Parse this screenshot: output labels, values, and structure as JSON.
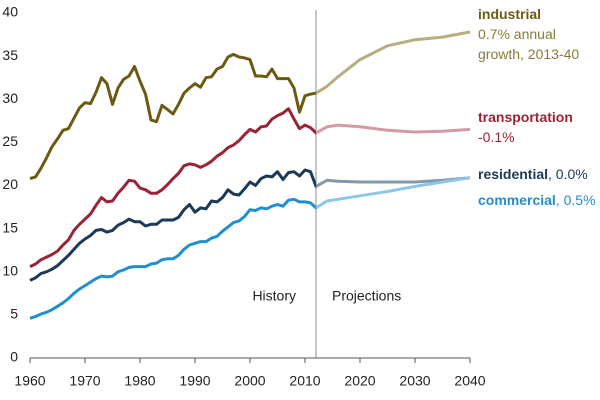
{
  "chart_data": {
    "type": "line",
    "x": [
      1960,
      1961,
      1962,
      1963,
      1964,
      1965,
      1966,
      1967,
      1968,
      1969,
      1970,
      1971,
      1972,
      1973,
      1974,
      1975,
      1976,
      1977,
      1978,
      1979,
      1980,
      1981,
      1982,
      1983,
      1984,
      1985,
      1986,
      1987,
      1988,
      1989,
      1990,
      1991,
      1992,
      1993,
      1994,
      1995,
      1996,
      1997,
      1998,
      1999,
      2000,
      2001,
      2002,
      2003,
      2004,
      2005,
      2006,
      2007,
      2008,
      2009,
      2010,
      2011,
      2012,
      2014,
      2016,
      2020,
      2025,
      2030,
      2035,
      2040
    ],
    "series": [
      {
        "name": "industrial",
        "annotation": "0.7% annual growth, 2013-40",
        "color": "#6b5a12",
        "projection_color": "#b8ad80",
        "values": [
          20.8,
          21.0,
          22.0,
          23.2,
          24.5,
          25.4,
          26.4,
          26.6,
          27.8,
          29.0,
          29.6,
          29.5,
          30.8,
          32.5,
          31.8,
          29.4,
          31.3,
          32.3,
          32.7,
          33.8,
          32.1,
          30.6,
          27.6,
          27.4,
          29.3,
          28.8,
          28.3,
          29.4,
          30.7,
          31.3,
          31.8,
          31.4,
          32.5,
          32.6,
          33.5,
          33.8,
          34.9,
          35.2,
          34.9,
          34.8,
          34.6,
          32.7,
          32.7,
          32.6,
          33.5,
          32.4,
          32.4,
          32.4,
          31.3,
          28.5,
          30.4,
          30.6,
          30.7,
          31.5,
          32.6,
          34.6,
          36.2,
          36.9,
          37.2,
          37.8
        ]
      },
      {
        "name": "transportation",
        "annotation": "-0.1%",
        "color": "#9b2335",
        "projection_color": "#d49aa5",
        "values": [
          10.6,
          10.9,
          11.4,
          11.7,
          12.0,
          12.4,
          13.1,
          13.7,
          14.8,
          15.5,
          16.1,
          16.7,
          17.7,
          18.6,
          18.1,
          18.2,
          19.1,
          19.8,
          20.6,
          20.5,
          19.7,
          19.5,
          19.1,
          19.1,
          19.5,
          20.1,
          20.8,
          21.4,
          22.3,
          22.5,
          22.4,
          22.1,
          22.4,
          22.8,
          23.4,
          23.8,
          24.4,
          24.7,
          25.2,
          25.9,
          26.5,
          26.2,
          26.8,
          26.9,
          27.7,
          28.1,
          28.4,
          28.9,
          27.7,
          26.6,
          27.0,
          26.7,
          26.1,
          26.8,
          27.0,
          26.8,
          26.4,
          26.2,
          26.3,
          26.5
        ]
      },
      {
        "name": "residential",
        "annotation": ", 0.0%",
        "color": "#1a3a57",
        "projection_color": "#8299ab",
        "values": [
          9.0,
          9.3,
          9.8,
          10.0,
          10.3,
          10.7,
          11.3,
          11.9,
          12.6,
          13.3,
          13.8,
          14.2,
          14.8,
          14.9,
          14.6,
          14.8,
          15.4,
          15.7,
          16.1,
          15.8,
          15.8,
          15.3,
          15.5,
          15.5,
          16.0,
          16.0,
          16.0,
          16.3,
          17.2,
          17.8,
          16.9,
          17.4,
          17.3,
          18.2,
          18.1,
          18.6,
          19.5,
          19.0,
          18.9,
          19.6,
          20.4,
          20.0,
          20.8,
          21.1,
          21.0,
          21.6,
          20.7,
          21.5,
          21.6,
          21.1,
          21.8,
          21.6,
          19.9,
          20.6,
          20.5,
          20.4,
          20.4,
          20.4,
          20.6,
          20.9
        ]
      },
      {
        "name": "commercial",
        "annotation": ", 0.5%",
        "color": "#1f8fcf",
        "projection_color": "#8cc6e8",
        "values": [
          4.6,
          4.8,
          5.1,
          5.3,
          5.6,
          6.0,
          6.4,
          6.9,
          7.5,
          8.0,
          8.4,
          8.8,
          9.2,
          9.5,
          9.4,
          9.5,
          10.0,
          10.2,
          10.5,
          10.6,
          10.6,
          10.6,
          10.9,
          11.0,
          11.4,
          11.5,
          11.5,
          11.9,
          12.6,
          13.1,
          13.3,
          13.5,
          13.5,
          13.9,
          14.1,
          14.7,
          15.2,
          15.7,
          15.9,
          16.4,
          17.2,
          17.1,
          17.4,
          17.3,
          17.6,
          17.8,
          17.6,
          18.3,
          18.4,
          18.1,
          18.1,
          18.0,
          17.4,
          18.2,
          18.4,
          18.8,
          19.3,
          19.9,
          20.4,
          20.9
        ]
      }
    ],
    "history_end": 2012,
    "history_label": "History",
    "projections_label": "Projections",
    "xlim": [
      1960,
      2040
    ],
    "xticks": [
      1960,
      1970,
      1980,
      1990,
      2000,
      2010,
      2020,
      2030,
      2040
    ],
    "ylim": [
      0,
      40
    ],
    "yticks": [
      0,
      5,
      10,
      15,
      20,
      25,
      30,
      35,
      40
    ],
    "grid": false
  }
}
